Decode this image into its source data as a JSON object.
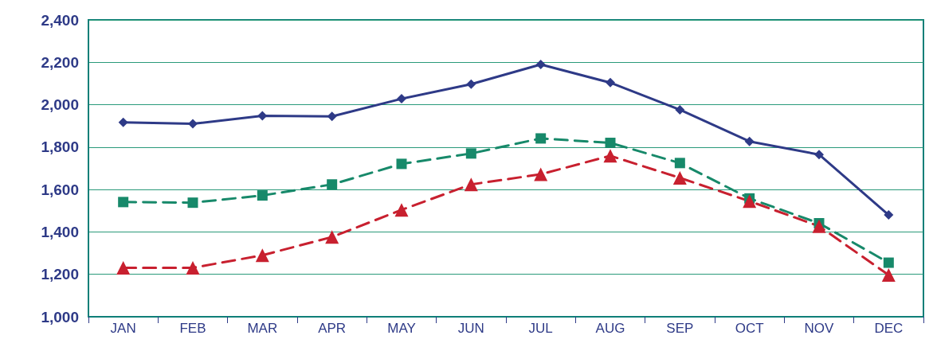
{
  "chart_data": {
    "type": "line",
    "categories": [
      "JAN",
      "FEB",
      "MAR",
      "APR",
      "MAY",
      "JUN",
      "JUL",
      "AUG",
      "SEP",
      "OCT",
      "NOV",
      "DEC"
    ],
    "series": [
      {
        "color": "#2e3a87",
        "marker": "diamond",
        "line_style": "solid",
        "values": [
          1917,
          1910,
          1948,
          1945,
          2028,
          2097,
          2190,
          2104,
          1976,
          1827,
          1765,
          1480
        ]
      },
      {
        "color": "#17896a",
        "marker": "square",
        "line_style": "dashed",
        "values": [
          1541,
          1538,
          1572,
          1624,
          1721,
          1770,
          1841,
          1820,
          1725,
          1558,
          1441,
          1255
        ]
      },
      {
        "color": "#c8202f",
        "marker": "triangle",
        "line_style": "dashed",
        "values": [
          1231,
          1231,
          1290,
          1376,
          1504,
          1624,
          1672,
          1759,
          1655,
          1545,
          1427,
          1197
        ]
      }
    ],
    "ylim": [
      1000,
      2400
    ],
    "yticks": [
      {
        "value": 1000,
        "label": "1,000"
      },
      {
        "value": 1200,
        "label": "1,200"
      },
      {
        "value": 1400,
        "label": "1,400"
      },
      {
        "value": 1600,
        "label": "1,600"
      },
      {
        "value": 1800,
        "label": "1,800"
      },
      {
        "value": 2000,
        "label": "2,000"
      },
      {
        "value": 2200,
        "label": "2,200"
      },
      {
        "value": 2400,
        "label": "2,400"
      }
    ],
    "grid": "y"
  }
}
